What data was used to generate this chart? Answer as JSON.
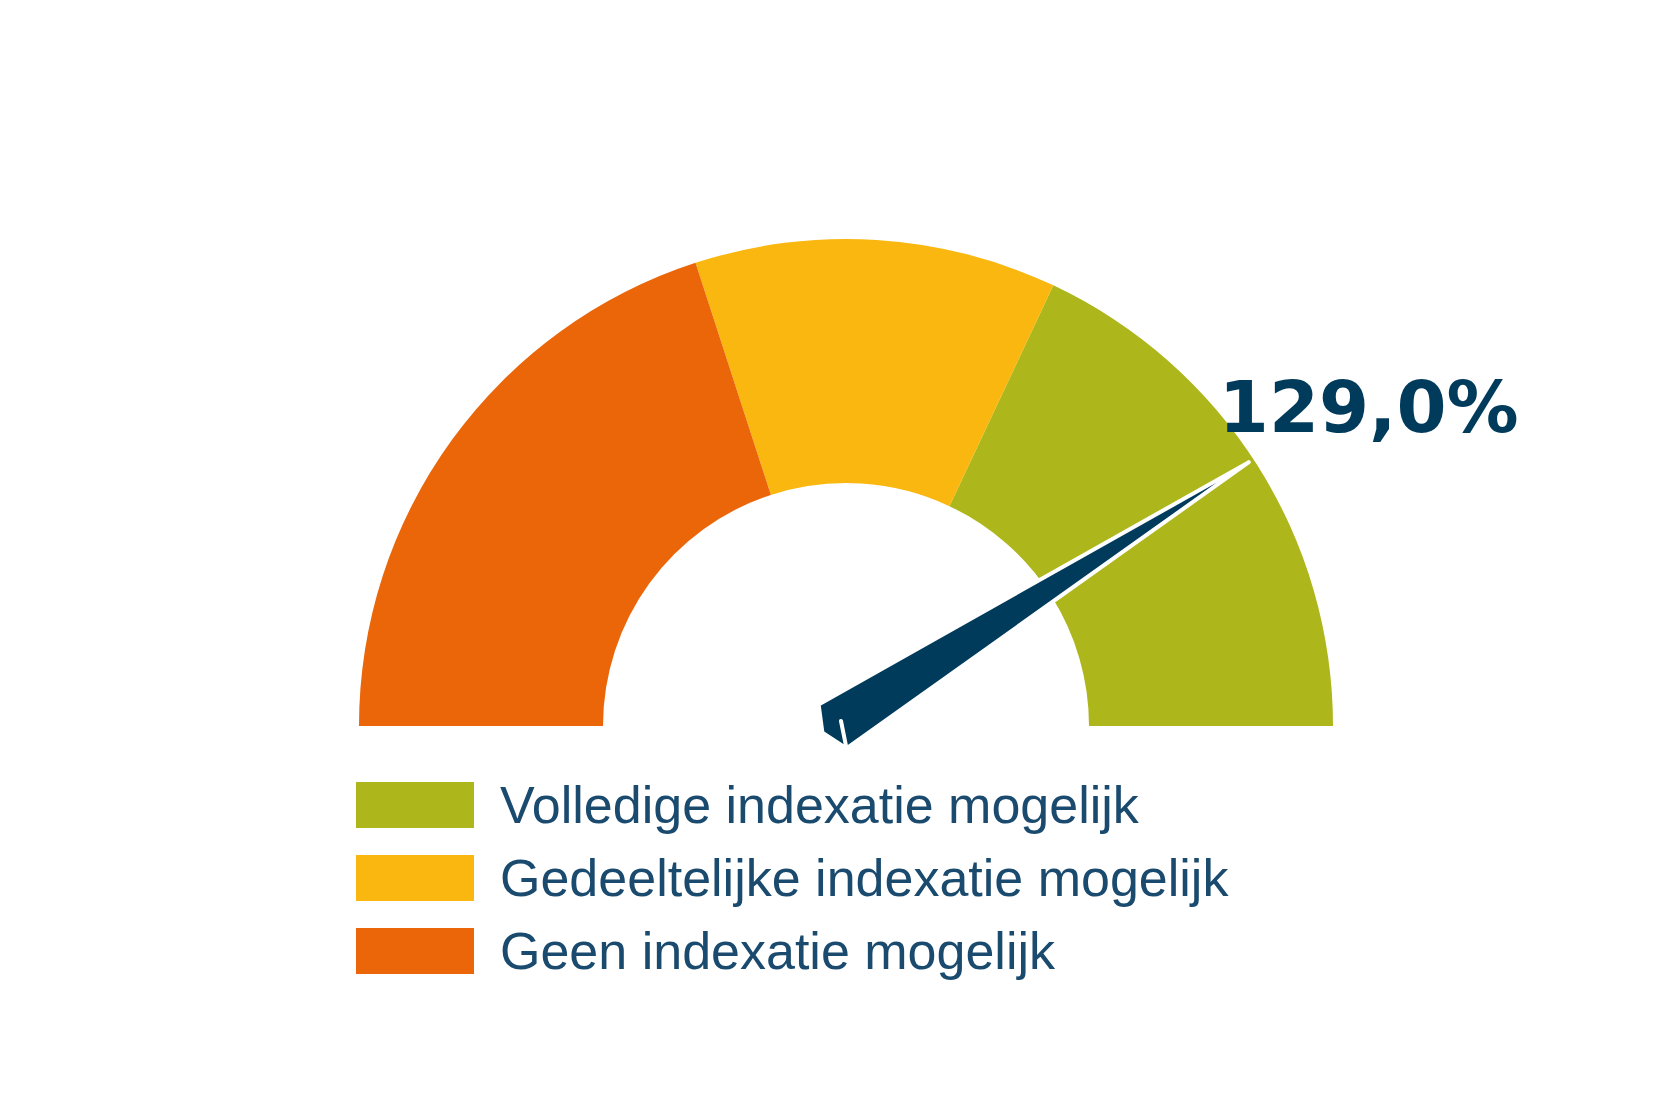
{
  "chart_data": {
    "type": "donut",
    "categories": [
      "Volledige indexatie mogelijk",
      "Gedeeltelijke indexatie mogelijk",
      "Geen indexatie mogelijk"
    ],
    "values": [
      36,
      24,
      40
    ],
    "colors": [
      "#adb61a",
      "#f9b70f",
      "#eb6608"
    ],
    "needle": "Volledige indexatie mogelijk",
    "annotations": [
      "129,0%"
    ],
    "legend": "bottom"
  }
}
